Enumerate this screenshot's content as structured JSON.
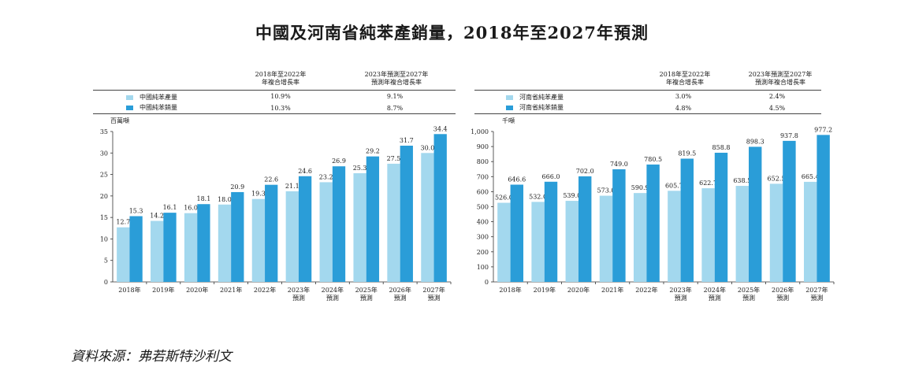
{
  "page": {
    "title": "中國及河南省純苯產銷量，2018年至2027年預測",
    "source": "資料來源：弗若斯特沙利文"
  },
  "colors": {
    "production": "#a3d8ee",
    "sales": "#2a9dd8",
    "axis": "#333333"
  },
  "panels": [
    {
      "cagr_headers": [
        "2018年至2022年\n年複合增長率",
        "2023年預測至2027年\n預測年複合增長率"
      ],
      "legend": [
        {
          "label": "中國純苯產量",
          "cagr1": "10.9%",
          "cagr2": "9.1%"
        },
        {
          "label": "中國純苯銷量",
          "cagr1": "10.3%",
          "cagr2": "8.7%"
        }
      ]
    },
    {
      "cagr_headers": [
        "2018年至2022年\n年複合增長率",
        "2023年預測至2027年\n預測年複合增長率"
      ],
      "legend": [
        {
          "label": "河南省純苯產量",
          "cagr1": "3.0%",
          "cagr2": "2.4%"
        },
        {
          "label": "河南省純苯銷量",
          "cagr1": "4.8%",
          "cagr2": "4.5%"
        }
      ]
    }
  ],
  "chart_data": [
    {
      "type": "bar",
      "ylabel": "百萬噸",
      "ylim": [
        0,
        35
      ],
      "yticks": [
        "0",
        "5",
        "10",
        "15",
        "20",
        "25",
        "30",
        "35"
      ],
      "ytick_values": [
        0,
        5,
        10,
        15,
        20,
        25,
        30,
        35
      ],
      "categories": [
        "2018年",
        "2019年",
        "2020年",
        "2021年",
        "2022年",
        "2023年\n預測",
        "2024年\n預測",
        "2025年\n預測",
        "2026年\n預測",
        "2027年\n預測"
      ],
      "series": [
        {
          "name": "中國純苯產量",
          "values": [
            12.7,
            14.2,
            16.0,
            18.0,
            19.3,
            21.1,
            23.2,
            25.3,
            27.5,
            30.0
          ],
          "labels": [
            "12.7",
            "14.2",
            "16.0",
            "18.0",
            "19.3",
            "21.1",
            "23.2",
            "25.3",
            "27.5",
            "30.0"
          ]
        },
        {
          "name": "中國純苯銷量",
          "values": [
            15.3,
            16.1,
            18.1,
            20.9,
            22.6,
            24.6,
            26.9,
            29.2,
            31.7,
            34.4
          ],
          "labels": [
            "15.3",
            "16.1",
            "18.1",
            "20.9",
            "22.6",
            "24.6",
            "26.9",
            "29.2",
            "31.7",
            "34.4"
          ]
        }
      ]
    },
    {
      "type": "bar",
      "ylabel": "千噸",
      "ylim": [
        0,
        1000
      ],
      "yticks": [
        "0",
        "100",
        "200",
        "300",
        "400",
        "500",
        "600",
        "700",
        "800",
        "900",
        "1,000"
      ],
      "ytick_values": [
        0,
        100,
        200,
        300,
        400,
        500,
        600,
        700,
        800,
        900,
        1000
      ],
      "categories": [
        "2018年",
        "2019年",
        "2020年",
        "2021年",
        "2022年",
        "2023年\n預測",
        "2024年\n預測",
        "2025年\n預測",
        "2026年\n預測",
        "2027年\n預測"
      ],
      "series": [
        {
          "name": "河南省純苯產量",
          "values": [
            526.0,
            532.0,
            539.0,
            573.0,
            590.9,
            605.7,
            622.7,
            638.5,
            652.5,
            665.4
          ],
          "labels": [
            "526.0",
            "532.0",
            "539.0",
            "573.0",
            "590.9",
            "605.7",
            "622.7",
            "638.5",
            "652.5",
            "665.4"
          ]
        },
        {
          "name": "河南省純苯銷量",
          "values": [
            646.6,
            666.0,
            702.0,
            749.0,
            780.5,
            819.5,
            858.8,
            898.3,
            937.8,
            977.2
          ],
          "labels": [
            "646.6",
            "666.0",
            "702.0",
            "749.0",
            "780.5",
            "819.5",
            "858.8",
            "898.3",
            "937.8",
            "977.2"
          ]
        }
      ]
    }
  ]
}
